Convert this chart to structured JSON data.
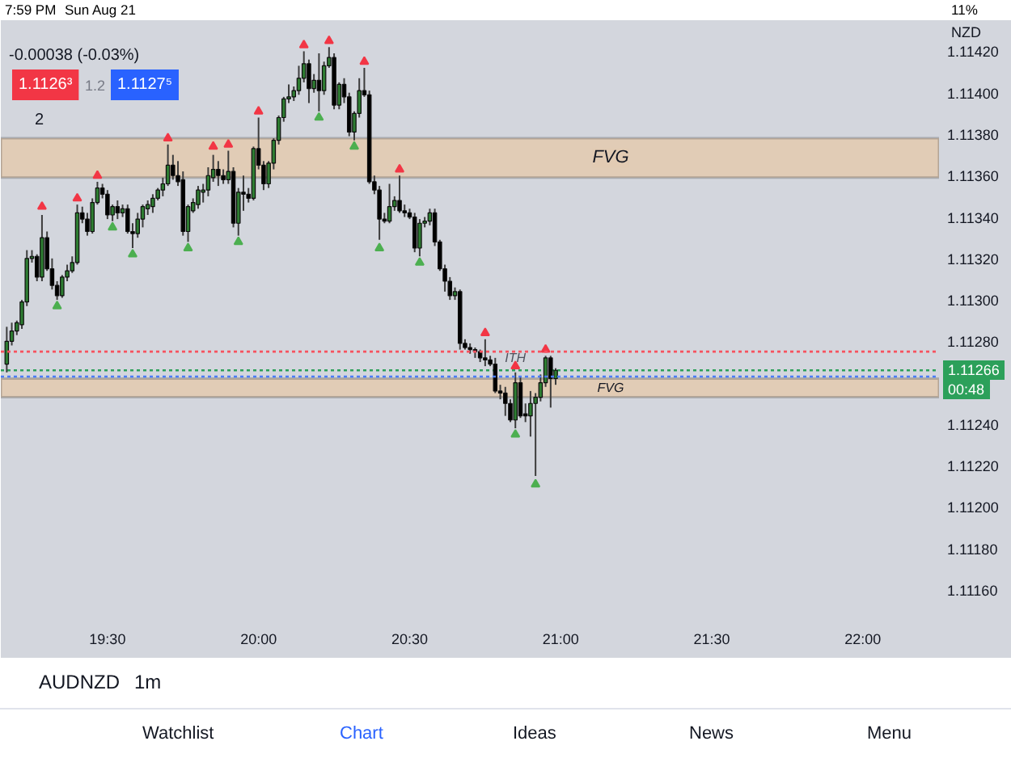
{
  "chart_data": {
    "type": "candlestick",
    "title": "AUDNZD",
    "subtitle": "1m",
    "ylabel": "NZD",
    "x": [
      19.1667,
      19.1833,
      19.2,
      19.2167,
      19.2333,
      19.25,
      19.2667,
      19.2833,
      19.3,
      19.3167,
      19.3333,
      19.35,
      19.3667,
      19.3833,
      19.4,
      19.4167,
      19.4333,
      19.45,
      19.4667,
      19.4833,
      19.5,
      19.5167,
      19.5333,
      19.55,
      19.5667,
      19.5833,
      19.6,
      19.6167,
      19.6333,
      19.65,
      19.6667,
      19.6833,
      19.7,
      19.7167,
      19.7333,
      19.75,
      19.7667,
      19.7833,
      19.8,
      19.8167,
      19.8333,
      19.85,
      19.8667,
      19.8833,
      19.9,
      19.9167,
      19.9333,
      19.95,
      19.9667,
      19.9833,
      20,
      20.0167,
      20.0333,
      20.05,
      20.0667,
      20.0833,
      20.1,
      20.1167,
      20.1333,
      20.15,
      20.1667,
      20.1833,
      20.2,
      20.2167,
      20.2333,
      20.25,
      20.2667,
      20.2833,
      20.3,
      20.3167,
      20.3333,
      20.35,
      20.3667,
      20.3833,
      20.4,
      20.4167,
      20.4333,
      20.45,
      20.4667,
      20.4833,
      20.5,
      20.5167,
      20.5333,
      20.55,
      20.5667,
      20.5833,
      20.6,
      20.6167,
      20.6333,
      20.65,
      20.6667,
      20.6833,
      20.7,
      20.7167,
      20.7333,
      20.75,
      20.7667,
      20.7833,
      20.8,
      20.8167,
      20.8333,
      20.85,
      20.8667,
      20.8833,
      20.9,
      20.9167,
      20.9333,
      20.95,
      20.9667,
      20.9833
    ],
    "ohlc": [
      [
        1.11269,
        1.11287,
        1.11265,
        1.1128
      ],
      [
        1.1128,
        1.11289,
        1.11278,
        1.11285
      ],
      [
        1.11285,
        1.1129,
        1.11283,
        1.11289
      ],
      [
        1.11288,
        1.113,
        1.11286,
        1.11299
      ],
      [
        1.11299,
        1.11324,
        1.11297,
        1.1132
      ],
      [
        1.1132,
        1.11324,
        1.11318,
        1.11321
      ],
      [
        1.11321,
        1.11322,
        1.11309,
        1.11311
      ],
      [
        1.11311,
        1.11341,
        1.11309,
        1.1133
      ],
      [
        1.1133,
        1.11333,
        1.11314,
        1.11315
      ],
      [
        1.11315,
        1.1132,
        1.11305,
        1.11307
      ],
      [
        1.11307,
        1.11309,
        1.113,
        1.11302
      ],
      [
        1.11302,
        1.11312,
        1.11301,
        1.11311
      ],
      [
        1.11311,
        1.11317,
        1.11309,
        1.11314
      ],
      [
        1.11314,
        1.11321,
        1.11313,
        1.11318
      ],
      [
        1.11318,
        1.11346,
        1.11317,
        1.11342
      ],
      [
        1.11342,
        1.11345,
        1.11337,
        1.11339
      ],
      [
        1.11339,
        1.11342,
        1.11331,
        1.11333
      ],
      [
        1.11333,
        1.11349,
        1.11332,
        1.11347
      ],
      [
        1.11347,
        1.11357,
        1.11346,
        1.11354
      ],
      [
        1.11354,
        1.11356,
        1.11349,
        1.11351
      ],
      [
        1.11351,
        1.11353,
        1.11339,
        1.11341
      ],
      [
        1.11341,
        1.11346,
        1.11338,
        1.11345
      ],
      [
        1.11345,
        1.11348,
        1.11339,
        1.11342
      ],
      [
        1.11342,
        1.11346,
        1.1134,
        1.11344
      ],
      [
        1.11344,
        1.11346,
        1.11332,
        1.11333
      ],
      [
        1.11333,
        1.11337,
        1.11325,
        1.11332
      ],
      [
        1.11332,
        1.11342,
        1.1133,
        1.11339
      ],
      [
        1.11339,
        1.11346,
        1.11335,
        1.11345
      ],
      [
        1.11344,
        1.11348,
        1.11341,
        1.11346
      ],
      [
        1.11345,
        1.11351,
        1.11342,
        1.11349
      ],
      [
        1.11349,
        1.11354,
        1.11348,
        1.11353
      ],
      [
        1.11353,
        1.11359,
        1.1135,
        1.11356
      ],
      [
        1.11356,
        1.11375,
        1.11355,
        1.11365
      ],
      [
        1.11365,
        1.1137,
        1.11358,
        1.1136
      ],
      [
        1.1136,
        1.11367,
        1.11355,
        1.11357
      ],
      [
        1.11358,
        1.11362,
        1.11331,
        1.11333
      ],
      [
        1.11333,
        1.11346,
        1.11328,
        1.11345
      ],
      [
        1.11343,
        1.11349,
        1.11342,
        1.11347
      ],
      [
        1.11346,
        1.11355,
        1.11344,
        1.11353
      ],
      [
        1.11352,
        1.11356,
        1.11347,
        1.11353
      ],
      [
        1.11353,
        1.11364,
        1.1135,
        1.1136
      ],
      [
        1.11359,
        1.1137,
        1.11357,
        1.11363
      ],
      [
        1.11363,
        1.11367,
        1.11355,
        1.1136
      ],
      [
        1.1136,
        1.11363,
        1.11356,
        1.11358
      ],
      [
        1.11358,
        1.11372,
        1.11356,
        1.11362
      ],
      [
        1.11362,
        1.11364,
        1.11335,
        1.11337
      ],
      [
        1.11337,
        1.11354,
        1.11331,
        1.11352
      ],
      [
        1.11352,
        1.1136,
        1.11343,
        1.11351
      ],
      [
        1.11351,
        1.11354,
        1.11347,
        1.11349
      ],
      [
        1.11349,
        1.11374,
        1.11348,
        1.11373
      ],
      [
        1.11373,
        1.11388,
        1.11363,
        1.11365
      ],
      [
        1.11365,
        1.11367,
        1.11353,
        1.11356
      ],
      [
        1.11356,
        1.11367,
        1.11354,
        1.11366
      ],
      [
        1.11366,
        1.11378,
        1.11363,
        1.11377
      ],
      [
        1.11377,
        1.11389,
        1.11375,
        1.11388
      ],
      [
        1.11388,
        1.11398,
        1.11386,
        1.11397
      ],
      [
        1.11397,
        1.11404,
        1.11395,
        1.11398
      ],
      [
        1.11398,
        1.11403,
        1.11396,
        1.11401
      ],
      [
        1.11401,
        1.11413,
        1.11399,
        1.11407
      ],
      [
        1.11407,
        1.1142,
        1.11405,
        1.11414
      ],
      [
        1.11414,
        1.11416,
        1.11395,
        1.11402
      ],
      [
        1.11402,
        1.11409,
        1.114,
        1.11406
      ],
      [
        1.11406,
        1.11419,
        1.11391,
        1.11401
      ],
      [
        1.11401,
        1.11415,
        1.11399,
        1.11413
      ],
      [
        1.11413,
        1.11422,
        1.11412,
        1.11417
      ],
      [
        1.11417,
        1.11419,
        1.11392,
        1.11394
      ],
      [
        1.11394,
        1.11405,
        1.11392,
        1.11404
      ],
      [
        1.11404,
        1.11407,
        1.11395,
        1.11398
      ],
      [
        1.11398,
        1.114,
        1.11379,
        1.11381
      ],
      [
        1.11381,
        1.11391,
        1.11377,
        1.1139
      ],
      [
        1.1139,
        1.11407,
        1.11388,
        1.11401
      ],
      [
        1.11401,
        1.11412,
        1.11398,
        1.11399
      ],
      [
        1.11399,
        1.11401,
        1.11356,
        1.11357
      ],
      [
        1.11357,
        1.1136,
        1.11351,
        1.11353
      ],
      [
        1.11353,
        1.11355,
        1.11329,
        1.11339
      ],
      [
        1.11339,
        1.11342,
        1.11337,
        1.11338
      ],
      [
        1.11338,
        1.11356,
        1.11337,
        1.11345
      ],
      [
        1.11345,
        1.1135,
        1.11343,
        1.11348
      ],
      [
        1.11348,
        1.1136,
        1.11342,
        1.11343
      ],
      [
        1.11343,
        1.11346,
        1.1134,
        1.11342
      ],
      [
        1.11342,
        1.11344,
        1.11339,
        1.1134
      ],
      [
        1.1134,
        1.11342,
        1.11323,
        1.11325
      ],
      [
        1.11325,
        1.11339,
        1.11321,
        1.11337
      ],
      [
        1.11337,
        1.1134,
        1.11335,
        1.11338
      ],
      [
        1.11338,
        1.11344,
        1.11336,
        1.11342
      ],
      [
        1.11342,
        1.11344,
        1.11326,
        1.11328
      ],
      [
        1.11328,
        1.11329,
        1.11314,
        1.11315
      ],
      [
        1.11315,
        1.11317,
        1.11304,
        1.11309
      ],
      [
        1.11309,
        1.11311,
        1.113,
        1.11302
      ],
      [
        1.11302,
        1.11306,
        1.113,
        1.11304
      ],
      [
        1.11304,
        1.11305,
        1.11276,
        1.11279
      ],
      [
        1.11279,
        1.11281,
        1.11276,
        1.11277
      ],
      [
        1.11277,
        1.11279,
        1.11274,
        1.11276
      ],
      [
        1.11276,
        1.11277,
        1.11272,
        1.11275
      ],
      [
        1.11275,
        1.11276,
        1.1127,
        1.11272
      ],
      [
        1.11272,
        1.11281,
        1.11268,
        1.11271
      ],
      [
        1.11271,
        1.11273,
        1.11268,
        1.11269
      ],
      [
        1.11269,
        1.11272,
        1.11255,
        1.11256
      ],
      [
        1.11256,
        1.11259,
        1.11252,
        1.11255
      ],
      [
        1.11255,
        1.11258,
        1.11244,
        1.1125
      ],
      [
        1.1125,
        1.11252,
        1.11241,
        1.11242
      ],
      [
        1.11242,
        1.11265,
        1.11238,
        1.1126
      ],
      [
        1.1126,
        1.11263,
        1.11243,
        1.11244
      ],
      [
        1.11245,
        1.1125,
        1.11241,
        1.11244
      ],
      [
        1.11244,
        1.11256,
        1.11234,
        1.1125
      ],
      [
        1.1125,
        1.11255,
        1.11215,
        1.11253
      ],
      [
        1.11253,
        1.11264,
        1.11251,
        1.1126
      ],
      [
        1.1126,
        1.11273,
        1.11258,
        1.11272
      ],
      [
        1.11272,
        1.11273,
        1.11248,
        1.11262
      ],
      [
        1.11262,
        1.11267,
        1.11259,
        1.11266
      ]
    ],
    "colors": [
      "#2e7d32",
      "#2e7d32",
      "#2e7d32",
      "#2e7d32",
      "#2e7d32",
      "#2e7d32",
      "#000000",
      "#2e7d32",
      "#000000",
      "#000000",
      "#000000",
      "#2e7d32",
      "#2e7d32",
      "#2e7d32",
      "#2e7d32",
      "#000000",
      "#000000",
      "#2e7d32",
      "#2e7d32",
      "#000000",
      "#000000",
      "#2e7d32",
      "#000000",
      "#2e7d32",
      "#000000",
      "#000000",
      "#2e7d32",
      "#2e7d32",
      "#2e7d32",
      "#2e7d32",
      "#2e7d32",
      "#2e7d32",
      "#2e7d32",
      "#000000",
      "#000000",
      "#000000",
      "#2e7d32",
      "#2e7d32",
      "#2e7d32",
      "#2e7d32",
      "#2e7d32",
      "#2e7d32",
      "#000000",
      "#000000",
      "#2e7d32",
      "#000000",
      "#2e7d32",
      "#000000",
      "#000000",
      "#2e7d32",
      "#000000",
      "#000000",
      "#2e7d32",
      "#2e7d32",
      "#2e7d32",
      "#2e7d32",
      "#2e7d32",
      "#2e7d32",
      "#2e7d32",
      "#2e7d32",
      "#000000",
      "#2e7d32",
      "#000000",
      "#2e7d32",
      "#2e7d32",
      "#000000",
      "#2e7d32",
      "#000000",
      "#000000",
      "#2e7d32",
      "#2e7d32",
      "#000000",
      "#000000",
      "#000000",
      "#000000",
      "#000000",
      "#2e7d32",
      "#2e7d32",
      "#000000",
      "#000000",
      "#000000",
      "#000000",
      "#2e7d32",
      "#2e7d32",
      "#2e7d32",
      "#000000",
      "#000000",
      "#000000",
      "#000000",
      "#2e7d32",
      "#000000",
      "#000000",
      "#000000",
      "#000000",
      "#000000",
      "#000000",
      "#000000",
      "#000000",
      "#000000",
      "#000000",
      "#000000",
      "#2e7d32",
      "#000000",
      "#000000",
      "#2e7d32",
      "#2e7d32",
      "#2e7d32",
      "#2e7d32",
      "#000000",
      "#2e7d32"
    ],
    "series": [
      {
        "type": "scatter",
        "color": "#f23645",
        "marker": "triangle",
        "x": [
          19.2833,
          19.4,
          19.4667,
          19.7,
          19.85,
          19.9,
          20,
          20.15,
          20.2333,
          20.35,
          20.4667,
          20.75,
          20.85,
          20.95
        ],
        "values": [
          1.11345,
          1.11349,
          1.1136,
          1.11378,
          1.11374,
          1.11375,
          1.11391,
          1.11423,
          1.11425,
          1.11415,
          1.11363,
          1.11284,
          1.11268,
          1.11276
        ]
      },
      {
        "type": "scatter",
        "color": "#4caf50",
        "marker": "triangle",
        "x": [
          19.3333,
          19.5167,
          19.5833,
          19.7667,
          19.9333,
          20.2,
          20.3167,
          20.4,
          20.5333,
          20.85,
          20.9167
        ],
        "values": [
          1.11297,
          1.11335,
          1.11322,
          1.11325,
          1.11328,
          1.11388,
          1.11374,
          1.11325,
          1.11318,
          1.11235,
          1.11211
        ]
      }
    ],
    "xlim": [
      19.147,
      22.252
    ],
    "ylim": [
      1.11144,
      1.11435
    ],
    "xticks": [
      {
        "value": 19.5,
        "label": "19:30"
      },
      {
        "value": 20,
        "label": "20:00"
      },
      {
        "value": 20.5,
        "label": "20:30"
      },
      {
        "value": 21,
        "label": "21:00"
      },
      {
        "value": 21.5,
        "label": "21:30"
      },
      {
        "value": 22,
        "label": "22:00"
      }
    ],
    "yticks": [
      {
        "value": 1.1116,
        "label": "1.11160"
      },
      {
        "value": 1.1118,
        "label": "1.11180"
      },
      {
        "value": 1.112,
        "label": "1.11200"
      },
      {
        "value": 1.1122,
        "label": "1.11220"
      },
      {
        "value": 1.1124,
        "label": "1.11240"
      },
      {
        "value": 1.1128,
        "label": "1.11280"
      },
      {
        "value": 1.113,
        "label": "1.11300"
      },
      {
        "value": 1.1132,
        "label": "1.11320"
      },
      {
        "value": 1.1134,
        "label": "1.11340"
      },
      {
        "value": 1.1136,
        "label": "1.11360"
      },
      {
        "value": 1.1138,
        "label": "1.11380"
      },
      {
        "value": 1.114,
        "label": "1.11400"
      },
      {
        "value": 1.1142,
        "label": "1.11420"
      }
    ],
    "bands": [
      {
        "axis": "y",
        "from": 1.11359,
        "to": 1.11378,
        "label": "FVG",
        "color": "#e2cbb3"
      },
      {
        "axis": "y",
        "from": 1.11253,
        "to": 1.11262,
        "label": "FVG",
        "color": "#e2cbb3"
      }
    ],
    "ref_lines": [
      {
        "axis": "y",
        "value": 1.11275,
        "color": "#f7525f",
        "line_style": "dotted"
      },
      {
        "axis": "y",
        "value": 1.11266,
        "label": "1.11266",
        "color": "#2ca05a",
        "line_style": "dotted"
      },
      {
        "axis": "y",
        "value": 1.11263,
        "color": "#4a7cf7",
        "line_style": "dotted"
      }
    ],
    "annotations": [
      "7:59 PM",
      "Sun Aug 21",
      "11%",
      "-0.00038 (-0.03%)",
      "1.1126³",
      "1.2",
      "1.1127⁵",
      "2",
      "00:48",
      {
        "text": "ITH",
        "x": 20.85,
        "y": 1.11272
      },
      "Watchlist",
      "Chart",
      "Ideas",
      "News",
      "Menu"
    ]
  }
}
